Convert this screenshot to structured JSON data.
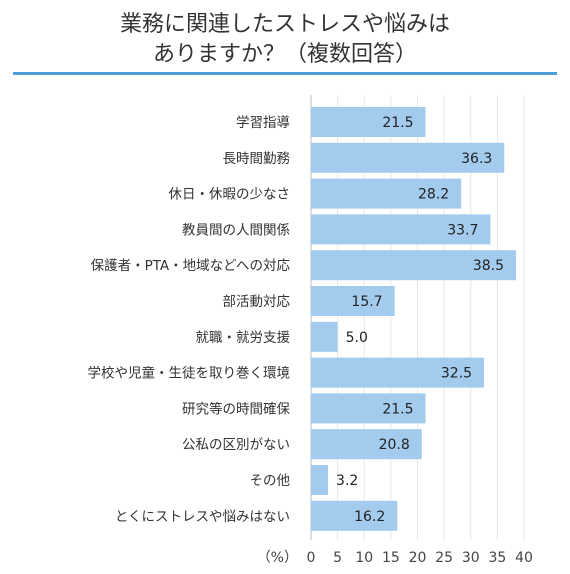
{
  "title_line1": "業務に関連したストレスや悩みは",
  "title_line2": "ありますか？（複数回答）",
  "chart_data": {
    "type": "bar",
    "orientation": "horizontal",
    "categories": [
      "学習指導",
      "長時間勤務",
      "休日・休暇の少なさ",
      "教員間の人間関係",
      "保護者・PTA・地域などへの対応",
      "部活動対応",
      "就職・就労支援",
      "学校や児童・生徒を取り巻く環境",
      "研究等の時間確保",
      "公私の区別がない",
      "その他",
      "とくにストレスや悩みはない"
    ],
    "values": [
      21.5,
      36.3,
      28.2,
      33.7,
      38.5,
      15.7,
      5.0,
      32.5,
      21.5,
      20.8,
      3.2,
      16.2
    ],
    "value_labels": [
      "21.5",
      "36.3",
      "28.2",
      "33.7",
      "38.5",
      "15.7",
      "5.0",
      "32.5",
      "21.5",
      "20.8",
      "3.2",
      "16.2"
    ],
    "x_unit": "（%）",
    "x_ticks": [
      "0",
      "5",
      "10",
      "15",
      "20",
      "25",
      "30",
      "35",
      "40"
    ],
    "xlim": [
      0,
      40
    ],
    "grid": true,
    "bar_color": "#a3cbee",
    "accent_color": "#4e9fd6"
  }
}
